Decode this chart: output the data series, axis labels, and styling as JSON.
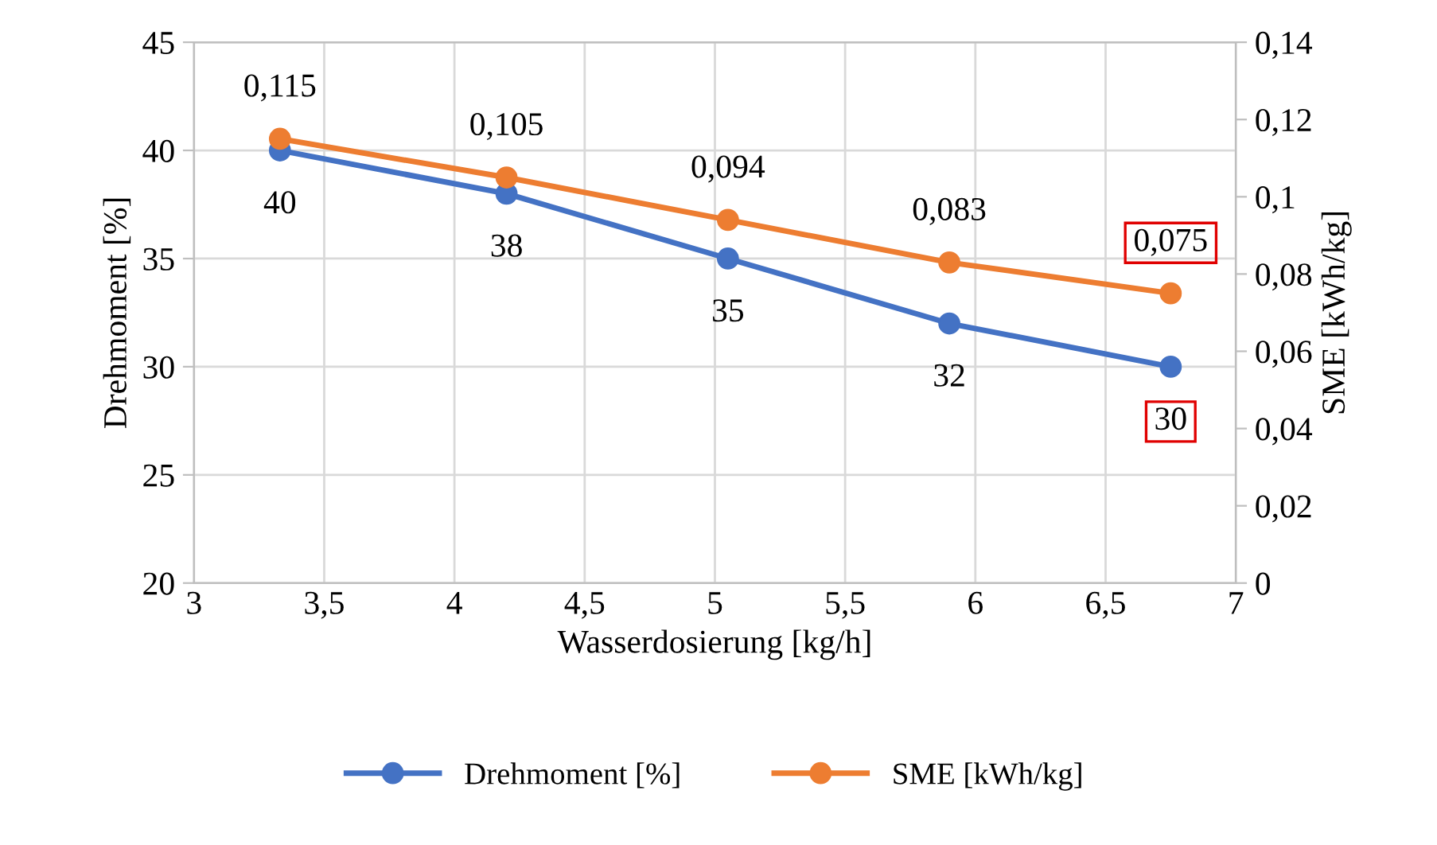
{
  "chart_data": {
    "type": "line",
    "xlabel": "Wasserdosierung [kg/h]",
    "ylabel": "Drehmoment [%]",
    "y2label": "SME [kWh/kg]",
    "x": [
      3.33,
      4.2,
      5.05,
      5.9,
      6.75
    ],
    "series": [
      {
        "name": "Drehmoment [%]",
        "color": "#4472c4",
        "values": [
          40,
          38,
          35,
          32,
          30
        ],
        "value_labels": [
          "40",
          "38",
          "35",
          "32",
          "30"
        ]
      },
      {
        "name": "SME [kWh/kg]",
        "color": "#ed7d31",
        "axis": "y2",
        "values": [
          0.115,
          0.105,
          0.094,
          0.083,
          0.075
        ],
        "value_labels": [
          "0,115",
          "0,105",
          "0,094",
          "0,083",
          "0,075"
        ]
      }
    ],
    "xlim": [
      3,
      7
    ],
    "xticks": [
      3,
      {
        "value": 3.5,
        "label": "3,5"
      },
      4,
      {
        "value": 4.5,
        "label": "4,5"
      },
      5,
      {
        "value": 5.5,
        "label": "5,5"
      },
      6,
      {
        "value": 6.5,
        "label": "6,5"
      },
      7
    ],
    "ylim": [
      20,
      45
    ],
    "yticks": [
      20,
      25,
      30,
      35,
      40,
      45
    ],
    "y2lim": [
      0,
      0.14
    ],
    "y2ticks": [
      0,
      {
        "value": 0.02,
        "label": "0,02"
      },
      {
        "value": 0.04,
        "label": "0,04"
      },
      {
        "value": 0.06,
        "label": "0,06"
      },
      {
        "value": 0.08,
        "label": "0,08"
      },
      {
        "value": 0.1,
        "label": "0,1"
      },
      {
        "value": 0.12,
        "label": "0,12"
      },
      {
        "value": 0.14,
        "label": "0,14"
      }
    ],
    "grid": true,
    "legend": "bottom",
    "marker": "circle",
    "line_style": "solid"
  }
}
